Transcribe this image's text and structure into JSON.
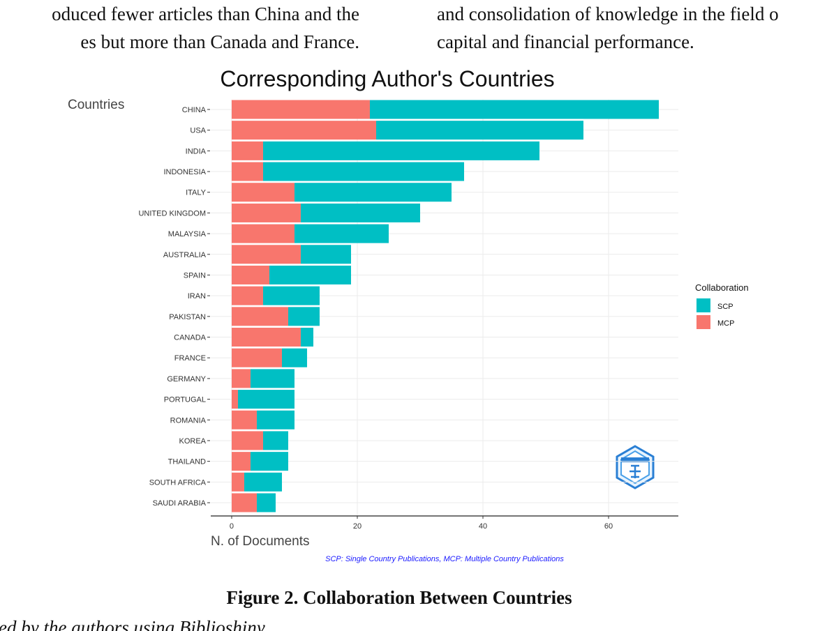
{
  "body_text": {
    "left": [
      "oduced fewer articles than China and the",
      "es but more than Canada and France."
    ],
    "right": [
      "and consolidation of knowledge in the field o",
      "capital and financial performance."
    ]
  },
  "figure_caption": "Figure 2. Collaboration Between Countries",
  "source_note": "ed by the authors using Biblioshiny",
  "chart_data": {
    "type": "stacked-bar-horizontal",
    "title": "Corresponding Author's Countries",
    "y_label": "Countries",
    "x_label": "N. of Documents",
    "caption": "SCP: Single Country Publications, MCP: Multiple Country Publications",
    "legend_title": "Collaboration",
    "categories": [
      "CHINA",
      "USA",
      "INDIA",
      "INDONESIA",
      "ITALY",
      "UNITED KINGDOM",
      "MALAYSIA",
      "AUSTRALIA",
      "SPAIN",
      "IRAN",
      "PAKISTAN",
      "CANADA",
      "FRANCE",
      "GERMANY",
      "PORTUGAL",
      "ROMANIA",
      "KOREA",
      "THAILAND",
      "SOUTH AFRICA",
      "SAUDI ARABIA"
    ],
    "series": [
      {
        "name": "SCP",
        "color": "#00bfc4",
        "values": [
          46,
          33,
          44,
          32,
          25,
          19,
          15,
          8,
          13,
          9,
          5,
          2,
          4,
          7,
          9,
          6,
          4,
          6,
          6,
          3
        ]
      },
      {
        "name": "MCP",
        "color": "#f8766d",
        "values": [
          22,
          23,
          5,
          5,
          10,
          11,
          10,
          11,
          6,
          5,
          9,
          11,
          8,
          3,
          1,
          4,
          5,
          3,
          2,
          4
        ]
      }
    ],
    "xlim": [
      -3.33,
      71.11
    ],
    "xticks": [
      0,
      20,
      40,
      60
    ],
    "grid": true,
    "legend": "right"
  }
}
